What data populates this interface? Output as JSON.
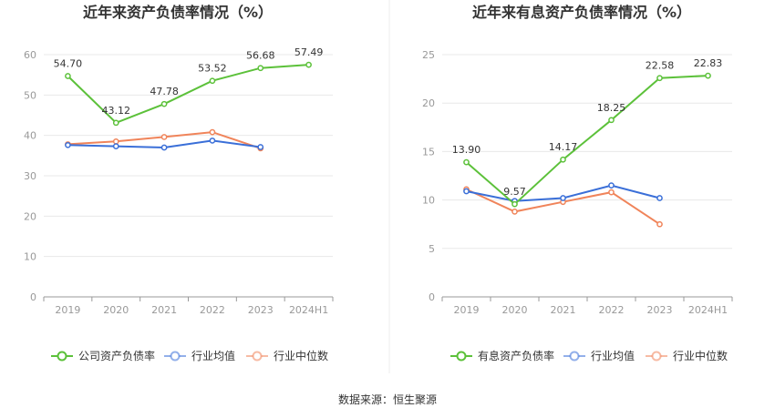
{
  "source_text": "数据来源：恒生聚源",
  "chart_data": [
    {
      "type": "line",
      "title": "近年来资产负债率情况（%）",
      "categories": [
        "2019",
        "2020",
        "2021",
        "2022",
        "2023",
        "2024H1"
      ],
      "ylim": [
        0,
        60
      ],
      "yticks": [
        0,
        10,
        20,
        30,
        40,
        50,
        60
      ],
      "ytick_labels": [
        "0",
        "10",
        "20",
        "30",
        "40",
        "50",
        "60"
      ],
      "grid": true,
      "legend_position": "bottom",
      "series": [
        {
          "name": "公司资产负债率",
          "color": "#5cc13a",
          "values": [
            54.7,
            43.12,
            47.78,
            53.52,
            56.68,
            57.49
          ],
          "labels": [
            "54.70",
            "43.12",
            "47.78",
            "53.52",
            "56.68",
            "57.49"
          ]
        },
        {
          "name": "行业均值",
          "color": "#3a6fd8",
          "values": [
            37.6,
            37.3,
            37.0,
            38.7,
            37.1,
            null
          ]
        },
        {
          "name": "行业中位数",
          "color": "#f0845a",
          "values": [
            37.8,
            38.5,
            39.6,
            40.8,
            36.8,
            null
          ]
        }
      ]
    },
    {
      "type": "line",
      "title": "近年来有息资产负债率情况（%）",
      "categories": [
        "2019",
        "2020",
        "2021",
        "2022",
        "2023",
        "2024H1"
      ],
      "ylim": [
        0,
        25
      ],
      "yticks": [
        0,
        5,
        10,
        15,
        20,
        25
      ],
      "ytick_labels": [
        "0",
        "5",
        "10",
        "15",
        "20",
        "25"
      ],
      "grid": true,
      "legend_position": "bottom",
      "series": [
        {
          "name": "有息资产负债率",
          "color": "#5cc13a",
          "values": [
            13.9,
            9.57,
            14.17,
            18.25,
            22.58,
            22.83
          ],
          "labels": [
            "13.90",
            "9.57",
            "14.17",
            "18.25",
            "22.58",
            "22.83"
          ]
        },
        {
          "name": "行业均值",
          "color": "#3a6fd8",
          "values": [
            10.9,
            9.9,
            10.2,
            11.5,
            10.2,
            null
          ]
        },
        {
          "name": "行业中位数",
          "color": "#f0845a",
          "values": [
            11.1,
            8.8,
            9.8,
            10.8,
            7.5,
            null
          ]
        }
      ]
    }
  ]
}
